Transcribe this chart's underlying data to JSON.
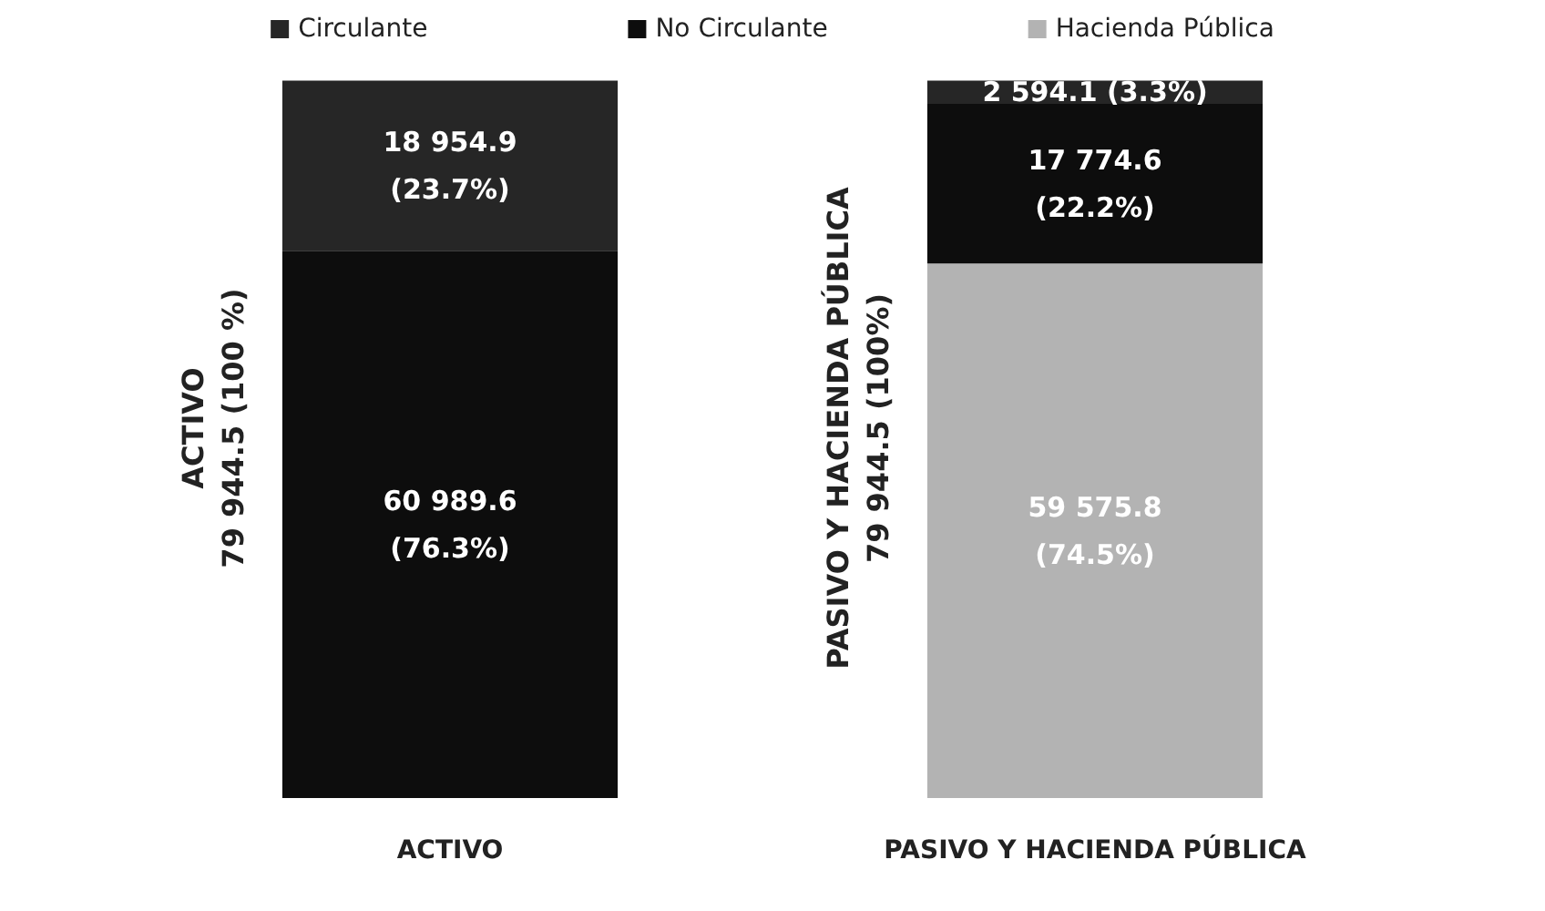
{
  "chart_data": {
    "type": "bar",
    "stacked": true,
    "categories": [
      "ACTIVO",
      "PASIVO Y HACIENDA PÚBLICA"
    ],
    "series": [
      {
        "name": "Hacienda Pública",
        "color": "#b3b3b3",
        "values": [
          null,
          59575.8
        ],
        "value_labels": [
          null,
          "59 575.8\n(74.5%)"
        ]
      },
      {
        "name": "No Circulante",
        "color": "#0d0d0d",
        "values": [
          60989.6,
          17774.6
        ],
        "value_labels": [
          "60 989.6\n(76.3%)",
          "17 774.6\n(22.2%)"
        ]
      },
      {
        "name": "Circulante",
        "color": "#262626",
        "values": [
          18954.9,
          2594.1
        ],
        "value_labels": [
          "18 954.9\n(23.7%)",
          "2 594.1 (3.3%)"
        ]
      }
    ],
    "annotations": [
      "ACTIVO\n79 944.5 (100 %)",
      "PASIVO Y HACIENDA PÚBLICA\n79 944.5 (100%)"
    ],
    "legend": "top"
  }
}
